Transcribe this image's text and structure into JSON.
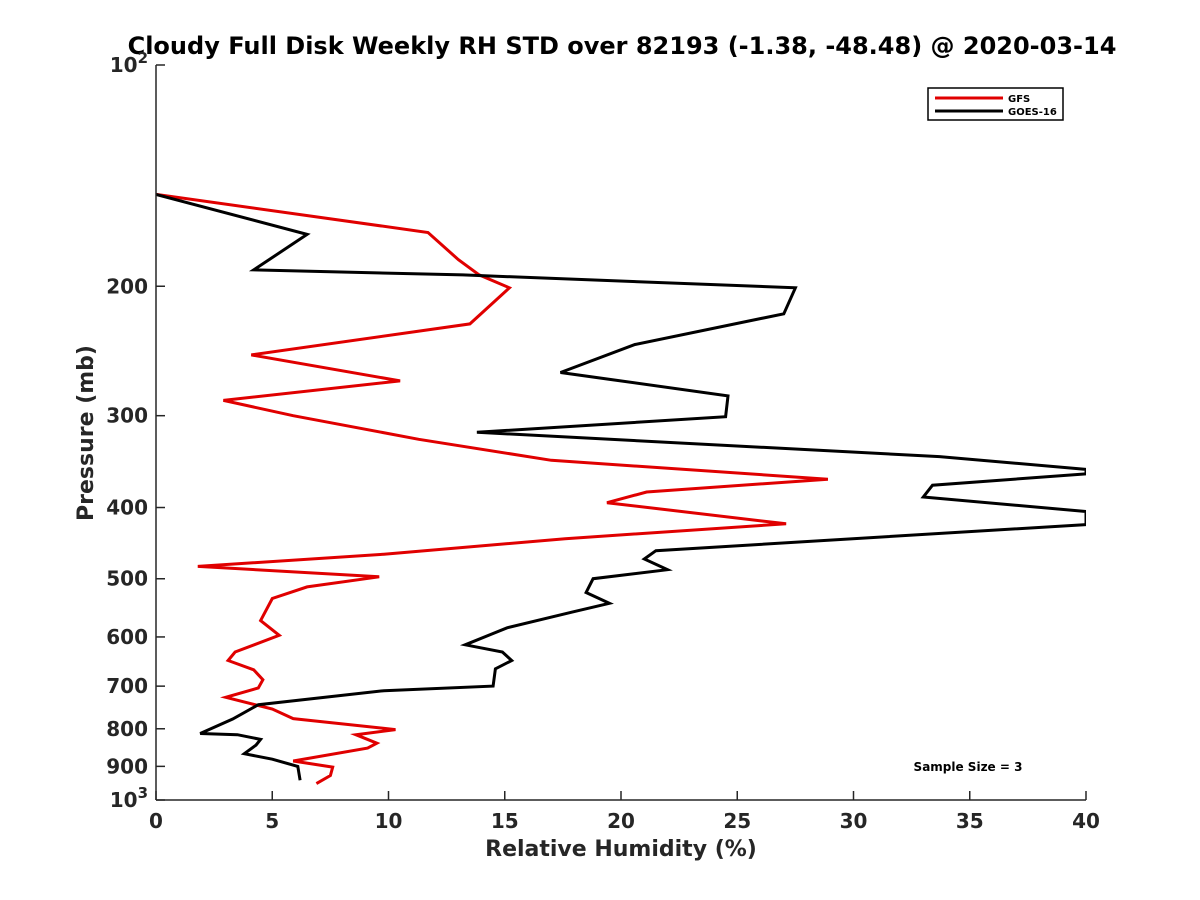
{
  "chart_data": {
    "type": "line",
    "title": "Cloudy Full Disk Weekly RH STD over 82193 (-1.38, -48.48) @ 2020-03-14",
    "xlabel": "Relative Humidity (%)",
    "ylabel": "Pressure (mb)",
    "xlim": [
      0,
      40
    ],
    "ylim": [
      100,
      1000
    ],
    "y_scale": "log",
    "y_reversed": true,
    "grid": false,
    "legend_position": "top-right",
    "x_ticks": [
      "0",
      "5",
      "10",
      "15",
      "20",
      "25",
      "30",
      "35",
      "40"
    ],
    "y_ticks": [
      {
        "value": 100,
        "label": "10",
        "sup": "2"
      },
      {
        "value": 200,
        "label": "200",
        "sup": ""
      },
      {
        "value": 300,
        "label": "300",
        "sup": ""
      },
      {
        "value": 400,
        "label": "400",
        "sup": ""
      },
      {
        "value": 500,
        "label": "500",
        "sup": ""
      },
      {
        "value": 600,
        "label": "600",
        "sup": ""
      },
      {
        "value": 700,
        "label": "700",
        "sup": ""
      },
      {
        "value": 800,
        "label": "800",
        "sup": ""
      },
      {
        "value": 900,
        "label": "900",
        "sup": ""
      },
      {
        "value": 1000,
        "label": "10",
        "sup": "3"
      }
    ],
    "series": [
      {
        "name": "GFS",
        "color": "#e00000",
        "points": [
          [
            0.0,
            150
          ],
          [
            11.7,
            169
          ],
          [
            13.0,
            184
          ],
          [
            13.9,
            193
          ],
          [
            15.2,
            201
          ],
          [
            13.5,
            225
          ],
          [
            4.1,
            248
          ],
          [
            10.5,
            269
          ],
          [
            2.9,
            286
          ],
          [
            5.9,
            300
          ],
          [
            11.3,
            323
          ],
          [
            17.0,
            345
          ],
          [
            28.9,
            366
          ],
          [
            21.1,
            381
          ],
          [
            19.4,
            394
          ],
          [
            27.1,
            421
          ],
          [
            17.6,
            441
          ],
          [
            9.8,
            463
          ],
          [
            1.8,
            481
          ],
          [
            9.6,
            497
          ],
          [
            6.5,
            513
          ],
          [
            5.0,
            532
          ],
          [
            4.5,
            570
          ],
          [
            5.3,
            597
          ],
          [
            3.4,
            629
          ],
          [
            3.1,
            646
          ],
          [
            4.2,
            665
          ],
          [
            4.6,
            686
          ],
          [
            4.4,
            704
          ],
          [
            3.0,
            725
          ],
          [
            5.0,
            752
          ],
          [
            5.9,
            775
          ],
          [
            10.3,
            802
          ],
          [
            8.6,
            815
          ],
          [
            9.5,
            837
          ],
          [
            9.1,
            850
          ],
          [
            5.9,
            885
          ],
          [
            7.6,
            902
          ],
          [
            7.5,
            926
          ],
          [
            6.9,
            950
          ]
        ]
      },
      {
        "name": "GOES-16",
        "color": "#000000",
        "points": [
          [
            0.0,
            150
          ],
          [
            6.5,
            170
          ],
          [
            4.2,
            190
          ],
          [
            13.2,
            193
          ],
          [
            27.5,
            201
          ],
          [
            27.0,
            218
          ],
          [
            20.6,
            240
          ],
          [
            17.4,
            262
          ],
          [
            24.6,
            282
          ],
          [
            24.5,
            301
          ],
          [
            13.8,
            316
          ],
          [
            33.7,
            341
          ],
          [
            40.0,
            355
          ],
          [
            40.0,
            360
          ],
          [
            33.4,
            373
          ],
          [
            33.0,
            387
          ],
          [
            40.0,
            405
          ],
          [
            40.0,
            422
          ],
          [
            21.5,
            458
          ],
          [
            21.0,
            470
          ],
          [
            22.0,
            486
          ],
          [
            18.8,
            500
          ],
          [
            18.5,
            522
          ],
          [
            19.5,
            540
          ],
          [
            17.9,
            555
          ],
          [
            15.1,
            583
          ],
          [
            13.3,
            615
          ],
          [
            14.9,
            629
          ],
          [
            15.3,
            646
          ],
          [
            14.6,
            663
          ],
          [
            14.5,
            700
          ],
          [
            9.8,
            710
          ],
          [
            4.4,
            742
          ],
          [
            3.3,
            776
          ],
          [
            1.9,
            812
          ],
          [
            3.5,
            815
          ],
          [
            4.5,
            827
          ],
          [
            4.3,
            842
          ],
          [
            3.8,
            865
          ],
          [
            5.0,
            880
          ],
          [
            6.1,
            900
          ],
          [
            6.2,
            940
          ]
        ]
      }
    ],
    "annotation": "Sample Size = 3"
  }
}
